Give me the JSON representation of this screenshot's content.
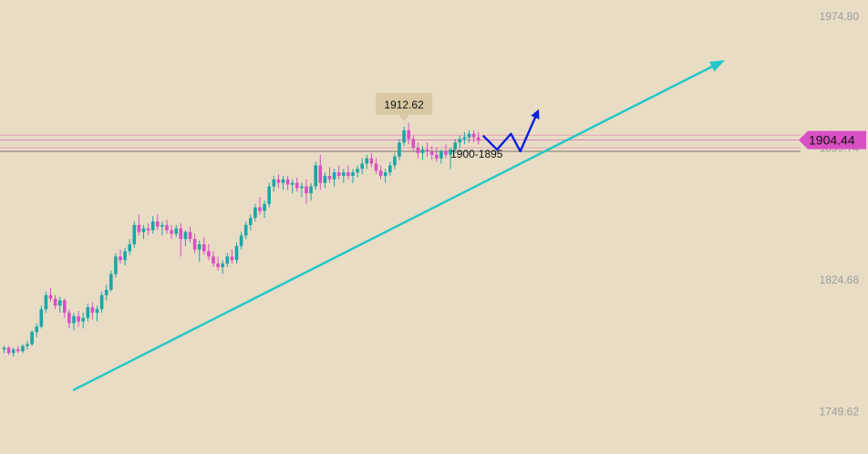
{
  "chart_data": {
    "type": "candlestick",
    "yaxis": {
      "ticks": [
        1974.8,
        1899.74,
        1824.68,
        1749.62
      ],
      "range": [
        1741,
        1977
      ]
    },
    "x": {
      "count": 125
    },
    "colors": {
      "background": "#e8dcc4",
      "up": "#1aa6a6",
      "down": "#d94fc4",
      "trendline": "#1ec8c8",
      "arrow": "#0a1fe0",
      "badge": "#d8c9a4",
      "last_price_badge": "#d94fc4",
      "level_line": "#e18fb5",
      "current_line": "#555555"
    },
    "candles": [
      [
        1785,
        1787,
        1783,
        1786
      ],
      [
        1786,
        1787,
        1782,
        1783
      ],
      [
        1783,
        1786,
        1781,
        1785
      ],
      [
        1785,
        1787,
        1783,
        1784
      ],
      [
        1784,
        1788,
        1783,
        1787
      ],
      [
        1787,
        1790,
        1785,
        1788
      ],
      [
        1788,
        1796,
        1787,
        1795
      ],
      [
        1795,
        1800,
        1792,
        1798
      ],
      [
        1798,
        1810,
        1797,
        1808
      ],
      [
        1808,
        1818,
        1806,
        1816
      ],
      [
        1816,
        1820,
        1812,
        1814
      ],
      [
        1814,
        1816,
        1808,
        1810
      ],
      [
        1810,
        1815,
        1806,
        1813
      ],
      [
        1813,
        1814,
        1803,
        1806
      ],
      [
        1806,
        1808,
        1797,
        1800
      ],
      [
        1800,
        1806,
        1796,
        1804
      ],
      [
        1804,
        1807,
        1798,
        1801
      ],
      [
        1801,
        1806,
        1797,
        1803
      ],
      [
        1803,
        1811,
        1801,
        1809
      ],
      [
        1809,
        1812,
        1802,
        1806
      ],
      [
        1806,
        1810,
        1801,
        1808
      ],
      [
        1808,
        1818,
        1806,
        1816
      ],
      [
        1816,
        1822,
        1813,
        1819
      ],
      [
        1819,
        1830,
        1818,
        1828
      ],
      [
        1828,
        1840,
        1826,
        1838
      ],
      [
        1838,
        1842,
        1834,
        1836
      ],
      [
        1836,
        1843,
        1833,
        1841
      ],
      [
        1841,
        1848,
        1839,
        1845
      ],
      [
        1845,
        1858,
        1843,
        1856
      ],
      [
        1856,
        1862,
        1850,
        1852
      ],
      [
        1852,
        1856,
        1848,
        1854
      ],
      [
        1854,
        1857,
        1850,
        1853
      ],
      [
        1853,
        1861,
        1851,
        1858
      ],
      [
        1858,
        1862,
        1853,
        1855
      ],
      [
        1855,
        1858,
        1850,
        1856
      ],
      [
        1856,
        1859,
        1851,
        1853
      ],
      [
        1853,
        1856,
        1848,
        1851
      ],
      [
        1851,
        1856,
        1849,
        1854
      ],
      [
        1854,
        1857,
        1838,
        1848
      ],
      [
        1848,
        1853,
        1844,
        1852
      ],
      [
        1852,
        1855,
        1846,
        1848
      ],
      [
        1848,
        1851,
        1840,
        1842
      ],
      [
        1842,
        1847,
        1835,
        1845
      ],
      [
        1845,
        1849,
        1839,
        1841
      ],
      [
        1841,
        1845,
        1836,
        1838
      ],
      [
        1838,
        1841,
        1832,
        1834
      ],
      [
        1834,
        1838,
        1830,
        1832
      ],
      [
        1832,
        1836,
        1828,
        1834
      ],
      [
        1834,
        1840,
        1832,
        1838
      ],
      [
        1838,
        1842,
        1834,
        1836
      ],
      [
        1836,
        1846,
        1834,
        1844
      ],
      [
        1844,
        1852,
        1842,
        1850
      ],
      [
        1850,
        1858,
        1848,
        1856
      ],
      [
        1856,
        1862,
        1853,
        1860
      ],
      [
        1860,
        1868,
        1858,
        1866
      ],
      [
        1866,
        1872,
        1862,
        1864
      ],
      [
        1864,
        1870,
        1860,
        1868
      ],
      [
        1868,
        1880,
        1866,
        1878
      ],
      [
        1878,
        1884,
        1875,
        1882
      ],
      [
        1882,
        1885,
        1877,
        1880
      ],
      [
        1880,
        1884,
        1876,
        1882
      ],
      [
        1882,
        1884,
        1876,
        1879
      ],
      [
        1879,
        1882,
        1874,
        1880
      ],
      [
        1880,
        1883,
        1875,
        1877
      ],
      [
        1877,
        1880,
        1872,
        1878
      ],
      [
        1878,
        1882,
        1868,
        1874
      ],
      [
        1874,
        1880,
        1870,
        1878
      ],
      [
        1878,
        1892,
        1876,
        1890
      ],
      [
        1890,
        1896,
        1876,
        1880
      ],
      [
        1880,
        1886,
        1877,
        1884
      ],
      [
        1884,
        1889,
        1880,
        1882
      ],
      [
        1882,
        1888,
        1878,
        1886
      ],
      [
        1886,
        1890,
        1882,
        1884
      ],
      [
        1884,
        1888,
        1880,
        1886
      ],
      [
        1886,
        1890,
        1882,
        1884
      ],
      [
        1884,
        1888,
        1880,
        1886
      ],
      [
        1886,
        1890,
        1883,
        1888
      ],
      [
        1888,
        1894,
        1885,
        1891
      ],
      [
        1891,
        1896,
        1888,
        1894
      ],
      [
        1894,
        1897,
        1889,
        1891
      ],
      [
        1891,
        1894,
        1885,
        1887
      ],
      [
        1887,
        1890,
        1882,
        1884
      ],
      [
        1884,
        1888,
        1880,
        1886
      ],
      [
        1886,
        1892,
        1884,
        1890
      ],
      [
        1890,
        1897,
        1888,
        1895
      ],
      [
        1895,
        1905,
        1893,
        1903
      ],
      [
        1903,
        1912,
        1901,
        1910
      ],
      [
        1910,
        1914,
        1902,
        1905
      ],
      [
        1905,
        1907,
        1898,
        1900
      ],
      [
        1900,
        1903,
        1894,
        1897
      ],
      [
        1897,
        1901,
        1893,
        1899
      ],
      [
        1899,
        1903,
        1895,
        1898
      ],
      [
        1898,
        1901,
        1893,
        1896
      ],
      [
        1896,
        1900,
        1892,
        1894
      ],
      [
        1894,
        1899,
        1891,
        1898
      ],
      [
        1898,
        1902,
        1894,
        1896
      ],
      [
        1896,
        1900,
        1888,
        1899
      ],
      [
        1899,
        1905,
        1897,
        1903
      ],
      [
        1903,
        1907,
        1900,
        1905
      ],
      [
        1905,
        1909,
        1902,
        1906
      ],
      [
        1906,
        1910,
        1903,
        1908
      ],
      [
        1908,
        1910,
        1903,
        1906
      ],
      [
        1906,
        1909,
        1902,
        1904
      ]
    ],
    "trendlines": [
      {
        "from": {
          "index": 15,
          "price": 1762
        },
        "to": {
          "index": 155,
          "price": 1950
        }
      }
    ],
    "levels": [
      1907.2,
      1904.44,
      1900.0,
      1898.0
    ],
    "annotations": [
      {
        "text": "1912.62",
        "index": 86,
        "price": 1912.62,
        "type": "badge"
      },
      {
        "text": "1900-1895",
        "index": 96,
        "price": 1896,
        "type": "label"
      }
    ],
    "arrows": [
      {
        "points": [
          [
            103,
            1907
          ],
          [
            106,
            1899
          ],
          [
            109,
            1908
          ],
          [
            111,
            1898
          ],
          [
            115,
            1922
          ]
        ]
      }
    ],
    "last_price": {
      "value": "1904.44"
    }
  }
}
